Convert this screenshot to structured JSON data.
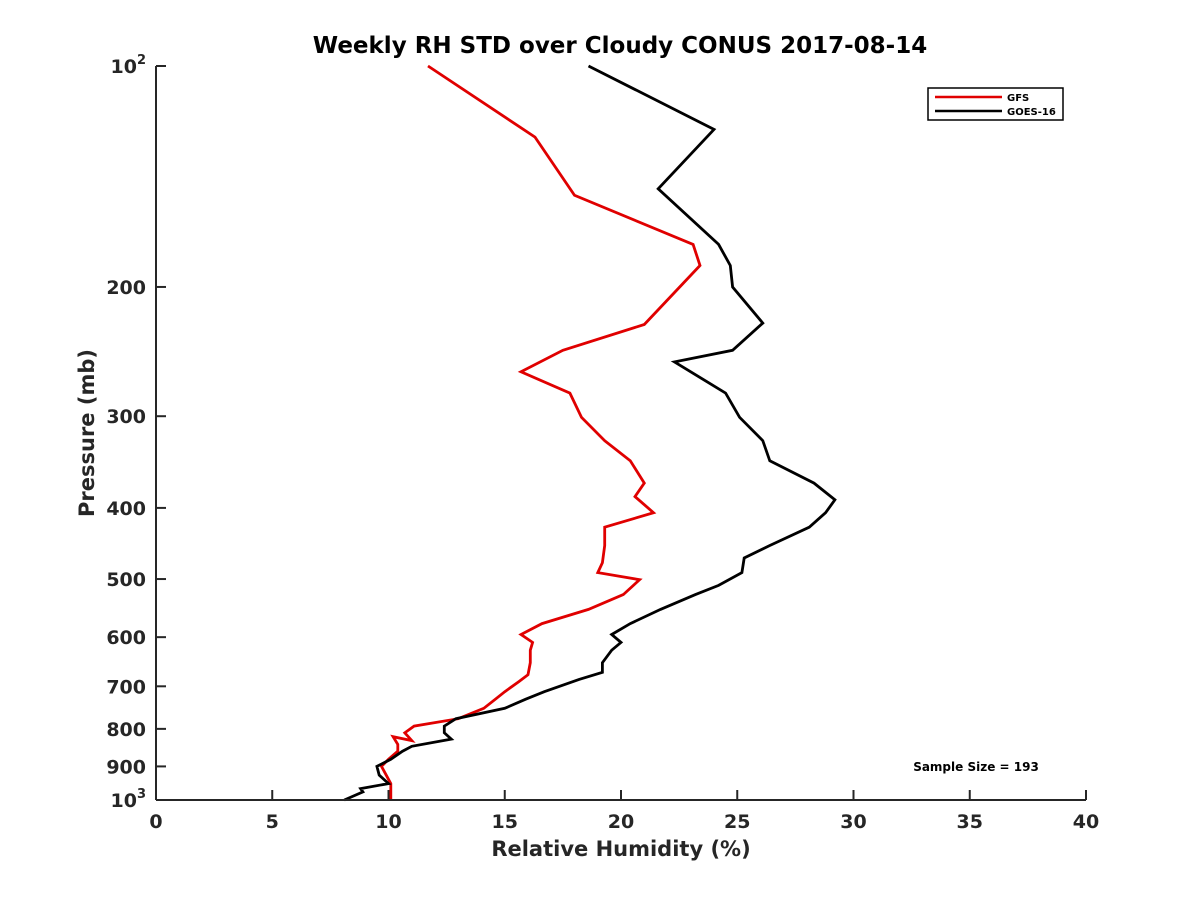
{
  "chart_data": {
    "type": "line",
    "title": "Weekly RH STD over Cloudy CONUS 2017-08-14",
    "xlabel": "Relative Humidity (%)",
    "ylabel": "Pressure (mb)",
    "xlim": [
      0,
      40
    ],
    "ylim": [
      100,
      1000
    ],
    "y_scale": "log",
    "y_reversed": true,
    "x_ticks": [
      "0",
      "5",
      "10",
      "15",
      "20",
      "25",
      "30",
      "35",
      "40"
    ],
    "y_ticks": [
      {
        "value": 100,
        "base": "10",
        "exp": "2"
      },
      {
        "value": 200,
        "label": "200"
      },
      {
        "value": 300,
        "label": "300"
      },
      {
        "value": 400,
        "label": "400"
      },
      {
        "value": 500,
        "label": "500"
      },
      {
        "value": 600,
        "label": "600"
      },
      {
        "value": 700,
        "label": "700"
      },
      {
        "value": 800,
        "label": "800"
      },
      {
        "value": 900,
        "label": "900"
      },
      {
        "value": 1000,
        "base": "10",
        "exp": "3"
      }
    ],
    "grid": false,
    "legend_position": "top-right",
    "annotation": "Sample Size = 193",
    "series": [
      {
        "name": "GFS",
        "color": "#e00000",
        "points": [
          [
            11.7,
            100
          ],
          [
            16.3,
            125
          ],
          [
            18.0,
            150
          ],
          [
            23.1,
            175
          ],
          [
            23.4,
            187
          ],
          [
            21.0,
            225
          ],
          [
            17.5,
            244
          ],
          [
            15.7,
            261
          ],
          [
            17.8,
            279
          ],
          [
            18.3,
            301
          ],
          [
            19.3,
            324
          ],
          [
            20.4,
            345
          ],
          [
            21.0,
            370
          ],
          [
            20.6,
            386
          ],
          [
            21.4,
            406
          ],
          [
            19.3,
            425
          ],
          [
            19.3,
            450
          ],
          [
            19.2,
            475
          ],
          [
            19.0,
            490
          ],
          [
            20.8,
            501
          ],
          [
            20.1,
            525
          ],
          [
            18.6,
            550
          ],
          [
            16.6,
            575
          ],
          [
            15.7,
            595
          ],
          [
            16.2,
            610
          ],
          [
            16.1,
            625
          ],
          [
            16.1,
            650
          ],
          [
            16.0,
            675
          ],
          [
            15.6,
            690
          ],
          [
            15.0,
            712
          ],
          [
            14.6,
            729
          ],
          [
            14.1,
            750
          ],
          [
            13.0,
            775
          ],
          [
            11.1,
            793
          ],
          [
            10.7,
            810
          ],
          [
            11.0,
            830
          ],
          [
            10.2,
            820
          ],
          [
            10.4,
            840
          ],
          [
            10.4,
            858
          ],
          [
            10.0,
            880
          ],
          [
            9.7,
            900
          ],
          [
            9.9,
            925
          ],
          [
            10.1,
            950
          ],
          [
            10.1,
            975
          ],
          [
            10.1,
            1000
          ]
        ]
      },
      {
        "name": "GOES-16",
        "color": "#000000",
        "points": [
          [
            18.6,
            100
          ],
          [
            24.0,
            122
          ],
          [
            21.6,
            147
          ],
          [
            24.2,
            175
          ],
          [
            24.7,
            187
          ],
          [
            24.8,
            200
          ],
          [
            26.1,
            224
          ],
          [
            24.8,
            244
          ],
          [
            22.3,
            253
          ],
          [
            24.5,
            279
          ],
          [
            25.1,
            301
          ],
          [
            26.1,
            324
          ],
          [
            26.4,
            345
          ],
          [
            28.3,
            370
          ],
          [
            29.2,
            390
          ],
          [
            28.8,
            406
          ],
          [
            28.1,
            425
          ],
          [
            26.4,
            450
          ],
          [
            25.3,
            468
          ],
          [
            25.2,
            490
          ],
          [
            24.2,
            510
          ],
          [
            23.2,
            525
          ],
          [
            21.7,
            550
          ],
          [
            20.4,
            575
          ],
          [
            19.6,
            595
          ],
          [
            20.0,
            610
          ],
          [
            19.6,
            625
          ],
          [
            19.2,
            650
          ],
          [
            19.2,
            670
          ],
          [
            18.2,
            685
          ],
          [
            16.7,
            712
          ],
          [
            15.9,
            729
          ],
          [
            15.0,
            750
          ],
          [
            12.9,
            775
          ],
          [
            12.4,
            793
          ],
          [
            12.4,
            810
          ],
          [
            12.7,
            826
          ],
          [
            11.0,
            845
          ],
          [
            10.6,
            858
          ],
          [
            10.1,
            880
          ],
          [
            9.5,
            900
          ],
          [
            9.6,
            925
          ],
          [
            10.0,
            950
          ],
          [
            8.8,
            965
          ],
          [
            8.9,
            975
          ],
          [
            8.1,
            1000
          ]
        ]
      }
    ]
  }
}
